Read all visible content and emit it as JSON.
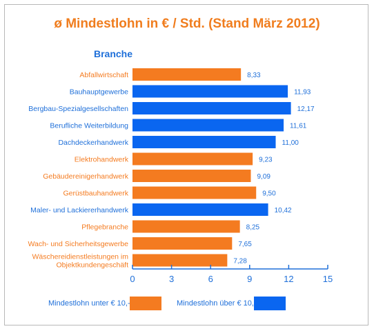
{
  "chart_data": {
    "type": "bar",
    "orientation": "horizontal",
    "title": "ø Mindestlohn in € / Std. (Stand März 2012)",
    "subtitle": "Branche",
    "categories": [
      "Abfallwirtschaft",
      "Bauhauptgewerbe",
      "Bergbau-Spezialgesellschaften",
      "Berufliche Weiterbildung",
      "Dachdeckerhandwerk",
      "Elektrohandwerk",
      "Gebäudereinigerhandwerk",
      "Gerüstbauhandwerk",
      "Maler- und Lackiererhandwerk",
      "Pflegebranche",
      "Wach- und Sicherheitsgewerbe",
      "Wäschereidienstleistungen im Objektkundengeschäft"
    ],
    "values": [
      8.33,
      11.93,
      12.17,
      11.61,
      11.0,
      9.23,
      9.09,
      9.5,
      10.42,
      8.25,
      7.65,
      7.28
    ],
    "value_labels": [
      "8,33",
      "11,93",
      "12,17",
      "11,61",
      "11,00",
      "9,23",
      "9,09",
      "9,50",
      "10,42",
      "8,25",
      "7,65",
      "7,28"
    ],
    "xlim": [
      0,
      15
    ],
    "xticks": [
      0,
      3,
      6,
      9,
      12,
      15
    ],
    "threshold": 10,
    "colors": {
      "below": "#f47b20",
      "above": "#0a66f0",
      "title": "#f07d1e",
      "text_blue": "#1e6fd9"
    },
    "legend": {
      "below_label": "Mindestlohn unter € 10,-",
      "above_label": "Mindestlohn über € 10,-",
      "position": "bottom"
    }
  }
}
